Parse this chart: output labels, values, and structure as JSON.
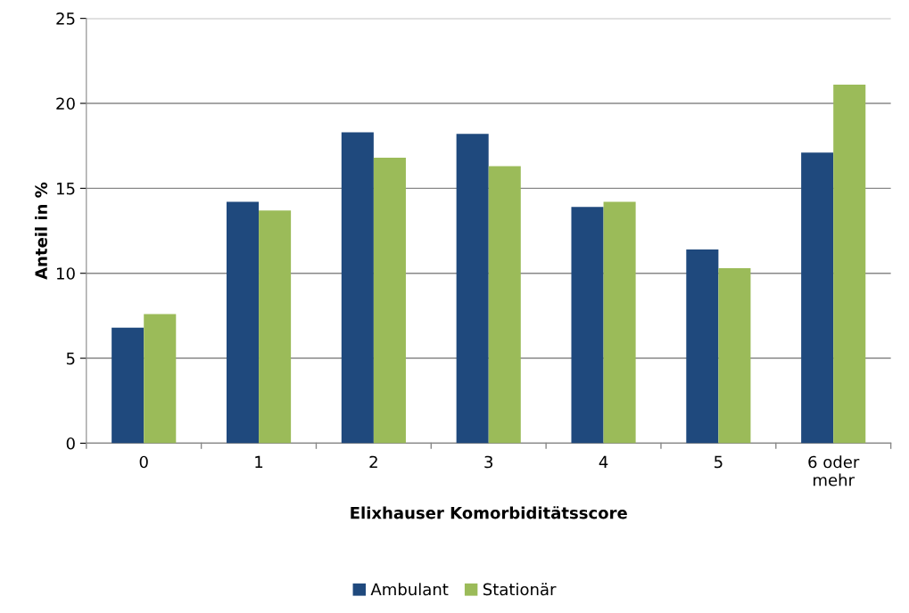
{
  "chart_data": {
    "type": "bar",
    "xlabel": "Elixhauser Komorbiditätsscore",
    "ylabel": "Anteil in %",
    "categories": [
      "0",
      "1",
      "2",
      "3",
      "4",
      "5",
      "6 oder\nmehr"
    ],
    "series": [
      {
        "name": "Ambulant",
        "color": "#1f497d",
        "values": [
          6.8,
          14.2,
          18.3,
          18.2,
          13.9,
          11.4,
          17.1
        ]
      },
      {
        "name": "Stationär",
        "color": "#9bbb59",
        "values": [
          7.6,
          13.7,
          16.8,
          16.3,
          14.2,
          10.3,
          21.1
        ]
      }
    ],
    "ylim": [
      0,
      25
    ],
    "yticks": [
      0,
      5,
      10,
      15,
      20,
      25
    ],
    "grid": "y",
    "legend": "bottom"
  }
}
